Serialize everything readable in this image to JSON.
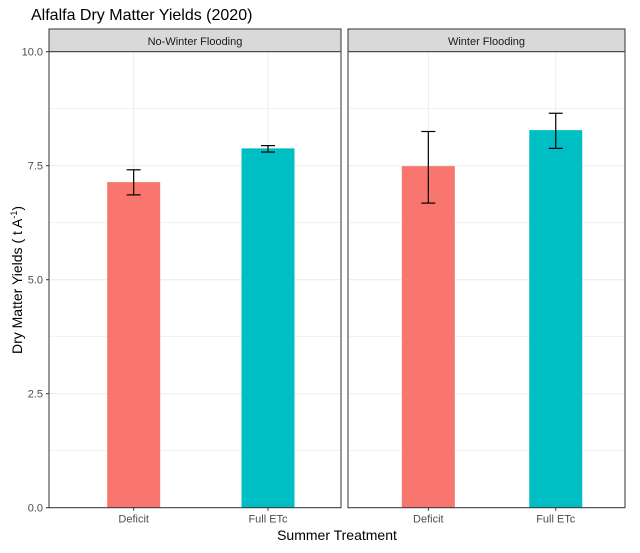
{
  "chart_data": {
    "type": "bar",
    "title": "Alfalfa Dry Matter Yields (2020)",
    "xlabel": "Summer Treatment",
    "ylabel": "Dry Matter Yields ( t A",
    "ylabel_superscript": "-1",
    "ylabel_close": ")",
    "ylim": [
      0,
      10
    ],
    "yticks": [
      "0.0",
      "2.5",
      "5.0",
      "7.5",
      "10.0"
    ],
    "ytick_values": [
      0,
      2.5,
      5,
      7.5,
      10
    ],
    "grid": true,
    "categories": [
      "Deficit",
      "Full ETc"
    ],
    "colors": {
      "Deficit": "#F8766D",
      "Full ETc": "#00BFC4"
    },
    "facets": [
      {
        "label": "No-Winter Flooding",
        "values": [
          7.14,
          7.88
        ],
        "error_low": [
          6.86,
          7.8
        ],
        "error_high": [
          7.41,
          7.94
        ]
      },
      {
        "label": "Winter Flooding",
        "values": [
          7.49,
          8.28
        ],
        "error_low": [
          6.68,
          7.88
        ],
        "error_high": [
          8.25,
          8.65
        ]
      }
    ]
  }
}
